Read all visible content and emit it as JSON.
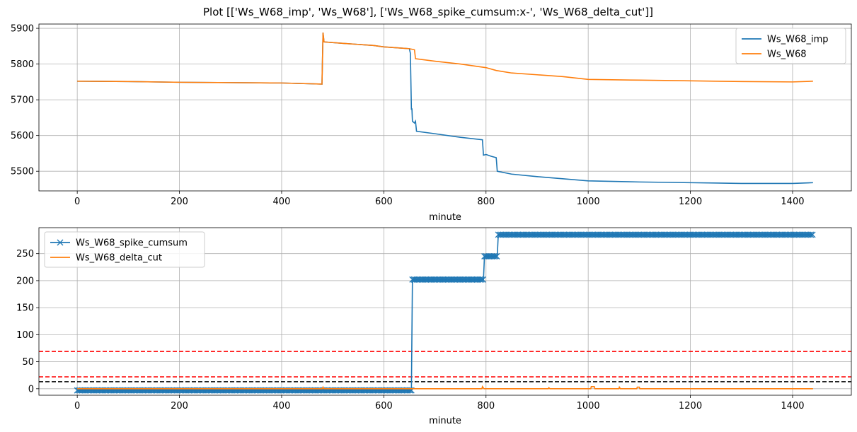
{
  "figure": {
    "title": "Plot [['Ws_W68_imp', 'Ws_W68'], ['Ws_W68_spike_cumsum:x-', 'Ws_W68_delta_cut']]"
  },
  "chart_data": [
    {
      "type": "line",
      "xlabel": "minute",
      "ylabel": "",
      "xlim": [
        -75,
        1515
      ],
      "ylim": [
        5445,
        5912
      ],
      "xticks": [
        0,
        200,
        400,
        600,
        800,
        1000,
        1200,
        1400
      ],
      "yticks": [
        5500,
        5600,
        5700,
        5800,
        5900
      ],
      "grid": true,
      "legend_position": "upper right",
      "series": [
        {
          "name": "Ws_W68_imp",
          "color": "#1f77b4",
          "points": [
            [
              0,
              5752
            ],
            [
              100,
              5751
            ],
            [
              200,
              5749
            ],
            [
              300,
              5748
            ],
            [
              400,
              5747
            ],
            [
              479,
              5744
            ],
            [
              481,
              5888
            ],
            [
              483,
              5862
            ],
            [
              520,
              5858
            ],
            [
              580,
              5852
            ],
            [
              600,
              5848
            ],
            [
              630,
              5845
            ],
            [
              650,
              5843
            ],
            [
              652,
              5830
            ],
            [
              654,
              5672
            ],
            [
              655,
              5676
            ],
            [
              656,
              5640
            ],
            [
              660,
              5635
            ],
            [
              662,
              5640
            ],
            [
              664,
              5612
            ],
            [
              700,
              5605
            ],
            [
              750,
              5595
            ],
            [
              793,
              5588
            ],
            [
              795,
              5545
            ],
            [
              800,
              5547
            ],
            [
              810,
              5542
            ],
            [
              820,
              5538
            ],
            [
              822,
              5500
            ],
            [
              850,
              5492
            ],
            [
              900,
              5485
            ],
            [
              950,
              5479
            ],
            [
              1000,
              5473
            ],
            [
              1100,
              5470
            ],
            [
              1200,
              5468
            ],
            [
              1300,
              5466
            ],
            [
              1400,
              5466
            ],
            [
              1440,
              5468
            ]
          ]
        },
        {
          "name": "Ws_W68",
          "color": "#ff7f0e",
          "points": [
            [
              0,
              5752
            ],
            [
              100,
              5751
            ],
            [
              200,
              5749
            ],
            [
              300,
              5748
            ],
            [
              400,
              5747
            ],
            [
              479,
              5744
            ],
            [
              481,
              5888
            ],
            [
              483,
              5862
            ],
            [
              520,
              5858
            ],
            [
              580,
              5852
            ],
            [
              600,
              5848
            ],
            [
              630,
              5845
            ],
            [
              650,
              5843
            ],
            [
              660,
              5840
            ],
            [
              662,
              5815
            ],
            [
              700,
              5808
            ],
            [
              750,
              5800
            ],
            [
              800,
              5790
            ],
            [
              820,
              5782
            ],
            [
              850,
              5775
            ],
            [
              900,
              5770
            ],
            [
              950,
              5765
            ],
            [
              1000,
              5757
            ],
            [
              1100,
              5755
            ],
            [
              1200,
              5753
            ],
            [
              1300,
              5751
            ],
            [
              1400,
              5750
            ],
            [
              1440,
              5752
            ]
          ]
        }
      ]
    },
    {
      "type": "line",
      "xlabel": "minute",
      "ylabel": "",
      "xlim": [
        -75,
        1515
      ],
      "ylim": [
        -12,
        298
      ],
      "xticks": [
        0,
        200,
        400,
        600,
        800,
        1000,
        1200,
        1400
      ],
      "yticks": [
        0,
        50,
        100,
        150,
        200,
        250
      ],
      "grid": true,
      "legend_position": "upper left",
      "series": [
        {
          "name": "Ws_W68_spike_cumsum",
          "color": "#1f77b4",
          "marker": "x",
          "points": [
            [
              0,
              -3
            ],
            [
              654,
              -3
            ],
            [
              656,
              202
            ],
            [
              795,
              202
            ],
            [
              797,
              245
            ],
            [
              822,
              245
            ],
            [
              824,
              285
            ],
            [
              1440,
              285
            ]
          ],
          "marker_segments": [
            [
              0,
              654,
              -3
            ],
            [
              656,
              795,
              202
            ],
            [
              797,
              822,
              245
            ],
            [
              824,
              1440,
              285
            ]
          ]
        },
        {
          "name": "Ws_W68_delta_cut",
          "color": "#ff7f0e",
          "points": [
            [
              0,
              0
            ],
            [
              480,
              0
            ],
            [
              481,
              3
            ],
            [
              483,
              0
            ],
            [
              792,
              0
            ],
            [
              793,
              4
            ],
            [
              796,
              0
            ],
            [
              922,
              0
            ],
            [
              923,
              2
            ],
            [
              925,
              0
            ],
            [
              1005,
              0
            ],
            [
              1006,
              4
            ],
            [
              1012,
              4
            ],
            [
              1013,
              0
            ],
            [
              1060,
              0
            ],
            [
              1061,
              3
            ],
            [
              1063,
              0
            ],
            [
              1095,
              0
            ],
            [
              1096,
              3
            ],
            [
              1100,
              3
            ],
            [
              1101,
              0
            ],
            [
              1440,
              0
            ]
          ]
        }
      ],
      "hlines": [
        {
          "y": 69,
          "color": "#ff0000",
          "style": "dashed"
        },
        {
          "y": 22,
          "color": "#ff0000",
          "style": "dashed"
        },
        {
          "y": 13,
          "color": "#000000",
          "style": "dashed"
        }
      ]
    }
  ]
}
